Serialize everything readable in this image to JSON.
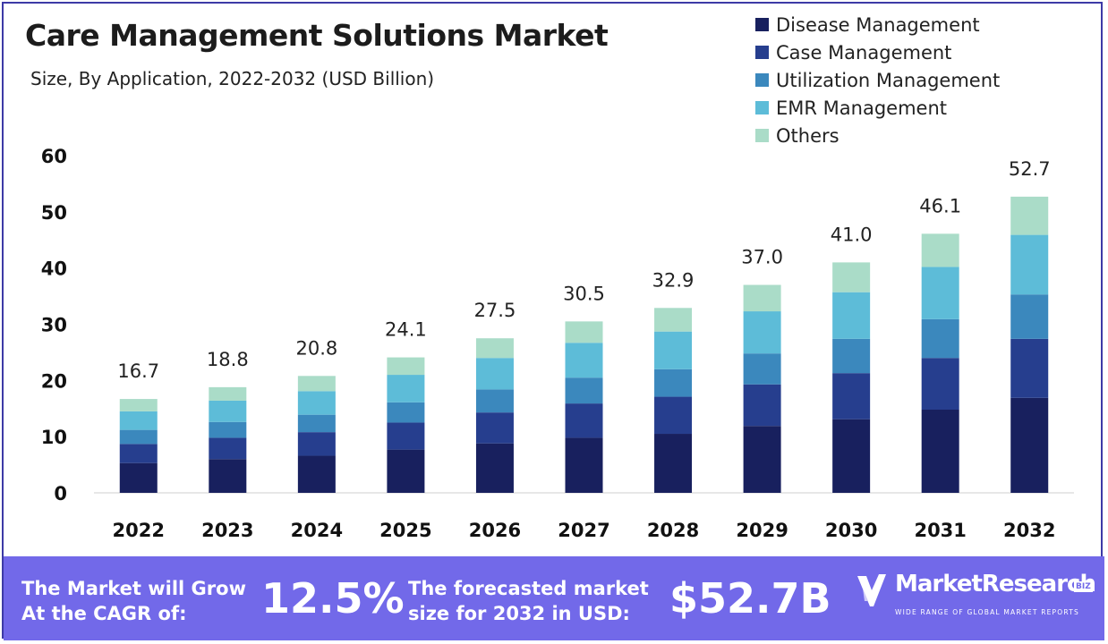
{
  "title": "Care Management Solutions Market",
  "subtitle": "Size, By Application, 2022-2032 (USD Billion)",
  "legend": [
    {
      "label": "Disease Management",
      "color": "#18205e"
    },
    {
      "label": "Case Management",
      "color": "#263e8e"
    },
    {
      "label": "Utilization Management",
      "color": "#3b88bd"
    },
    {
      "label": "EMR Management",
      "color": "#5dbcd8"
    },
    {
      "label": "Others",
      "color": "#aadcc8"
    }
  ],
  "chart_data": {
    "type": "bar",
    "stacked": true,
    "title": "Care Management Solutions Market",
    "subtitle": "Size, By Application, 2022-2032 (USD Billion)",
    "categories": [
      "2022",
      "2023",
      "2024",
      "2025",
      "2026",
      "2027",
      "2028",
      "2029",
      "2030",
      "2031",
      "2032"
    ],
    "series": [
      {
        "name": "Disease Management",
        "color": "#18205e",
        "values": [
          5.3,
          6.0,
          6.6,
          7.7,
          8.8,
          9.8,
          10.5,
          11.9,
          13.1,
          14.8,
          16.9
        ]
      },
      {
        "name": "Case Management",
        "color": "#263e8e",
        "values": [
          3.4,
          3.8,
          4.2,
          4.8,
          5.5,
          6.1,
          6.6,
          7.4,
          8.2,
          9.2,
          10.5
        ]
      },
      {
        "name": "Utilization Management",
        "color": "#3b88bd",
        "values": [
          2.5,
          2.8,
          3.1,
          3.6,
          4.1,
          4.6,
          4.9,
          5.5,
          6.1,
          6.9,
          7.9
        ]
      },
      {
        "name": "EMR Management",
        "color": "#5dbcd8",
        "values": [
          3.3,
          3.8,
          4.2,
          4.9,
          5.6,
          6.2,
          6.7,
          7.5,
          8.3,
          9.3,
          10.6
        ]
      },
      {
        "name": "Others",
        "color": "#aadcc8",
        "values": [
          2.2,
          2.4,
          2.7,
          3.1,
          3.5,
          3.8,
          4.2,
          4.7,
          5.3,
          5.9,
          6.8
        ]
      }
    ],
    "totals": [
      "16.7",
      "18.8",
      "20.8",
      "24.1",
      "27.5",
      "30.5",
      "32.9",
      "37.0",
      "41.0",
      "46.1",
      "52.7"
    ],
    "yticks": [
      "0",
      "10",
      "20",
      "30",
      "40",
      "50",
      "60"
    ],
    "ylim": [
      0,
      60
    ],
    "grid": false,
    "legend_position": "top-right"
  },
  "footer": {
    "cagr_label_line1": "The Market will Grow",
    "cagr_label_line2": "At the CAGR of:",
    "cagr_value": "12.5%",
    "forecast_label_line1": "The forecasted market",
    "forecast_label_line2": "size for 2032 in USD:",
    "forecast_value": "$52.7B",
    "brand_name": "MarketResearch",
    "brand_suffix": "BIZ",
    "brand_tagline": "WIDE RANGE OF GLOBAL MARKET REPORTS"
  }
}
